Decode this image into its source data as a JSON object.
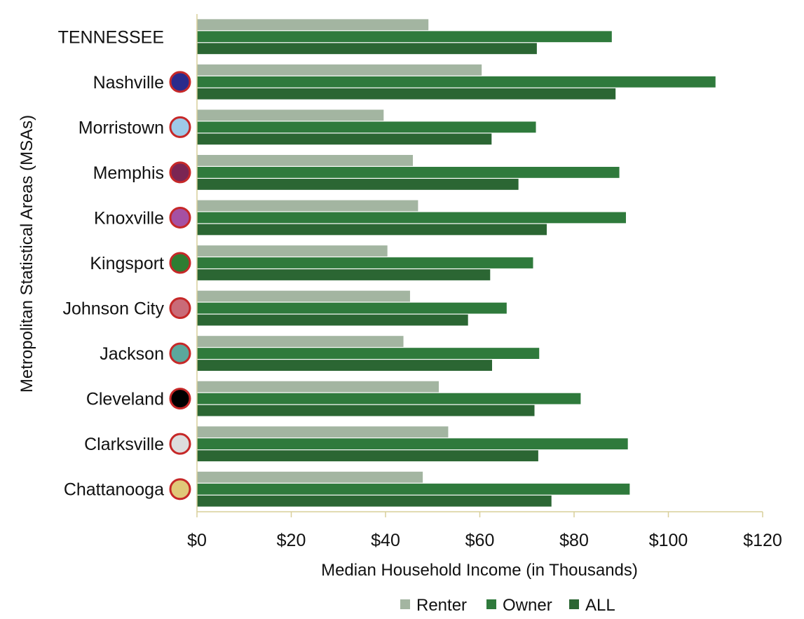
{
  "chart_data": {
    "type": "bar",
    "orientation": "horizontal",
    "title": "",
    "xlabel": "Median Household Income (in Thousands)",
    "ylabel": "Metropolitan Statistical Areas (MSAs)",
    "xlim": [
      0,
      120
    ],
    "x_ticks": [
      "$0",
      "$20",
      "$40",
      "$60",
      "$80",
      "$100",
      "$120"
    ],
    "grid": false,
    "legend_position": "bottom",
    "categories": [
      "TENNESSEE",
      "Nashville",
      "Morristown",
      "Memphis",
      "Knoxville",
      "Kingsport",
      "Johnson City",
      "Jackson",
      "Cleveland",
      "Clarksville",
      "Chattanooga"
    ],
    "marker_colors": [
      null,
      "#2b2b8c",
      "#9ecae8",
      "#7b2553",
      "#a550a3",
      "#2e7d32",
      "#c96b78",
      "#5ba89c",
      "#000000",
      "#dddddd",
      "#e0c878"
    ],
    "series": [
      {
        "name": "Renter",
        "color": "#a3b5a1",
        "values": [
          49.1,
          60.4,
          39.6,
          45.8,
          46.9,
          40.4,
          45.2,
          43.8,
          51.3,
          53.3,
          47.9
        ]
      },
      {
        "name": "Owner",
        "color": "#2f7a3c",
        "values": [
          88.0,
          110.0,
          71.9,
          89.6,
          91.0,
          71.3,
          65.7,
          72.6,
          81.4,
          91.4,
          91.8
        ]
      },
      {
        "name": "ALL",
        "color": "#2b6633",
        "values": [
          72.1,
          88.8,
          62.5,
          68.2,
          74.2,
          62.2,
          57.5,
          62.6,
          71.6,
          72.4,
          75.2
        ]
      }
    ]
  }
}
